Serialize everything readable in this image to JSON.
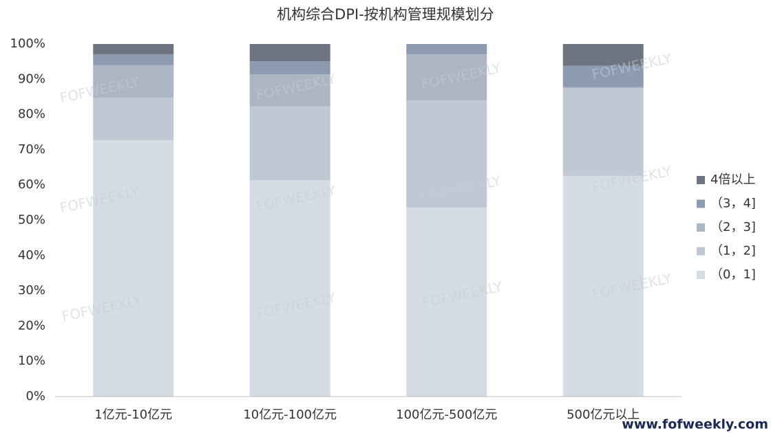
{
  "chart_data": {
    "type": "stacked_bar",
    "title": "机构综合DPI-按机构管理规模划分",
    "categories": [
      "1亿元-10亿元",
      "10亿元-100亿元",
      "100亿元-500亿元",
      "500亿元以上"
    ],
    "series": [
      {
        "name": "（0，1]",
        "color": "#d6dce4",
        "values": [
          72.7,
          61.4,
          53.6,
          62.6
        ]
      },
      {
        "name": "（1，2]",
        "color": "#c0c8d4",
        "values": [
          12.1,
          20.9,
          30.4,
          24.9
        ]
      },
      {
        "name": "（2，3]",
        "color": "#abb5c4",
        "values": [
          9.2,
          9.1,
          13.1,
          0.3
        ]
      },
      {
        "name": "（3，4]",
        "color": "#8d9bb1",
        "values": [
          3.1,
          3.7,
          2.9,
          6.0
        ]
      },
      {
        "name": "4倍以上",
        "color": "#6f7580",
        "values": [
          2.9,
          4.9,
          0,
          6.2
        ]
      }
    ],
    "ylim": [
      0,
      100
    ],
    "yticks": [
      {
        "value": 0,
        "label": "0%"
      },
      {
        "value": 10,
        "label": "10%"
      },
      {
        "value": 20,
        "label": "20%"
      },
      {
        "value": 30,
        "label": "30%"
      },
      {
        "value": 40,
        "label": "40%"
      },
      {
        "value": 50,
        "label": "50%"
      },
      {
        "value": 60,
        "label": "60%"
      },
      {
        "value": 70,
        "label": "70%"
      },
      {
        "value": 80,
        "label": "80%"
      },
      {
        "value": 90,
        "label": "90%"
      },
      {
        "value": 100,
        "label": "100%"
      }
    ],
    "legend": "right",
    "watermark": "FOFWEEKLY",
    "source": "www.fofweekly.com"
  }
}
